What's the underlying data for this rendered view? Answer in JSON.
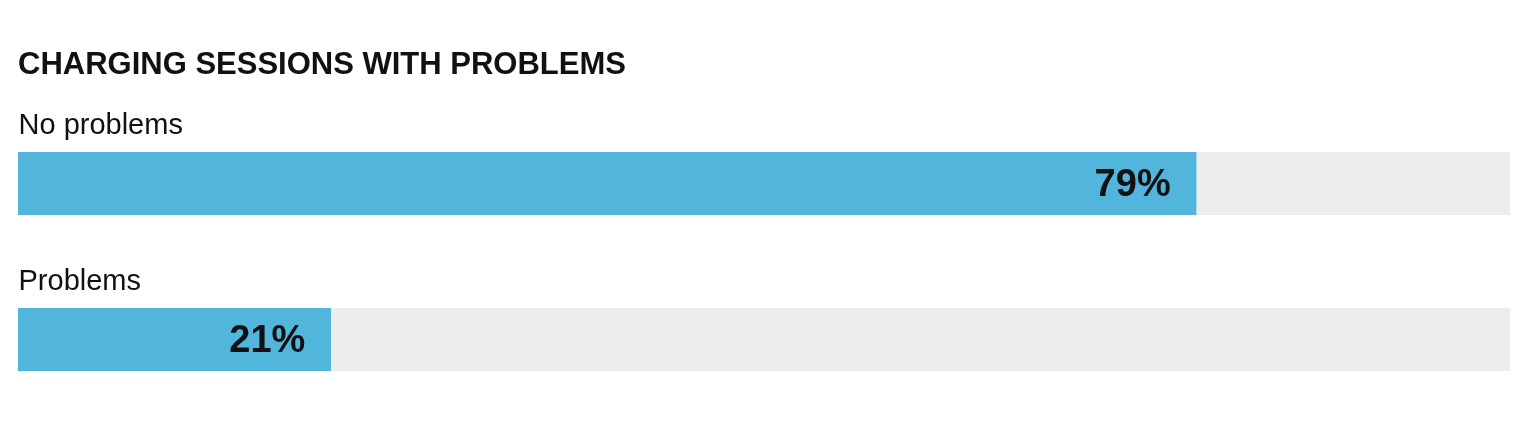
{
  "chart_data": {
    "type": "bar",
    "orientation": "horizontal",
    "stacked": true,
    "title": "CHARGING SESSIONS WITH PROBLEMS",
    "categories": [
      "No problems",
      "Problems"
    ],
    "series": [
      {
        "color": "#52b5dc",
        "values": [
          79,
          21
        ],
        "value_labels": [
          "79%",
          "21%"
        ]
      },
      {
        "color": "#ececec",
        "values": [
          21,
          79
        ]
      }
    ],
    "xlim": [
      0,
      100
    ],
    "tick_labels": "y"
  }
}
